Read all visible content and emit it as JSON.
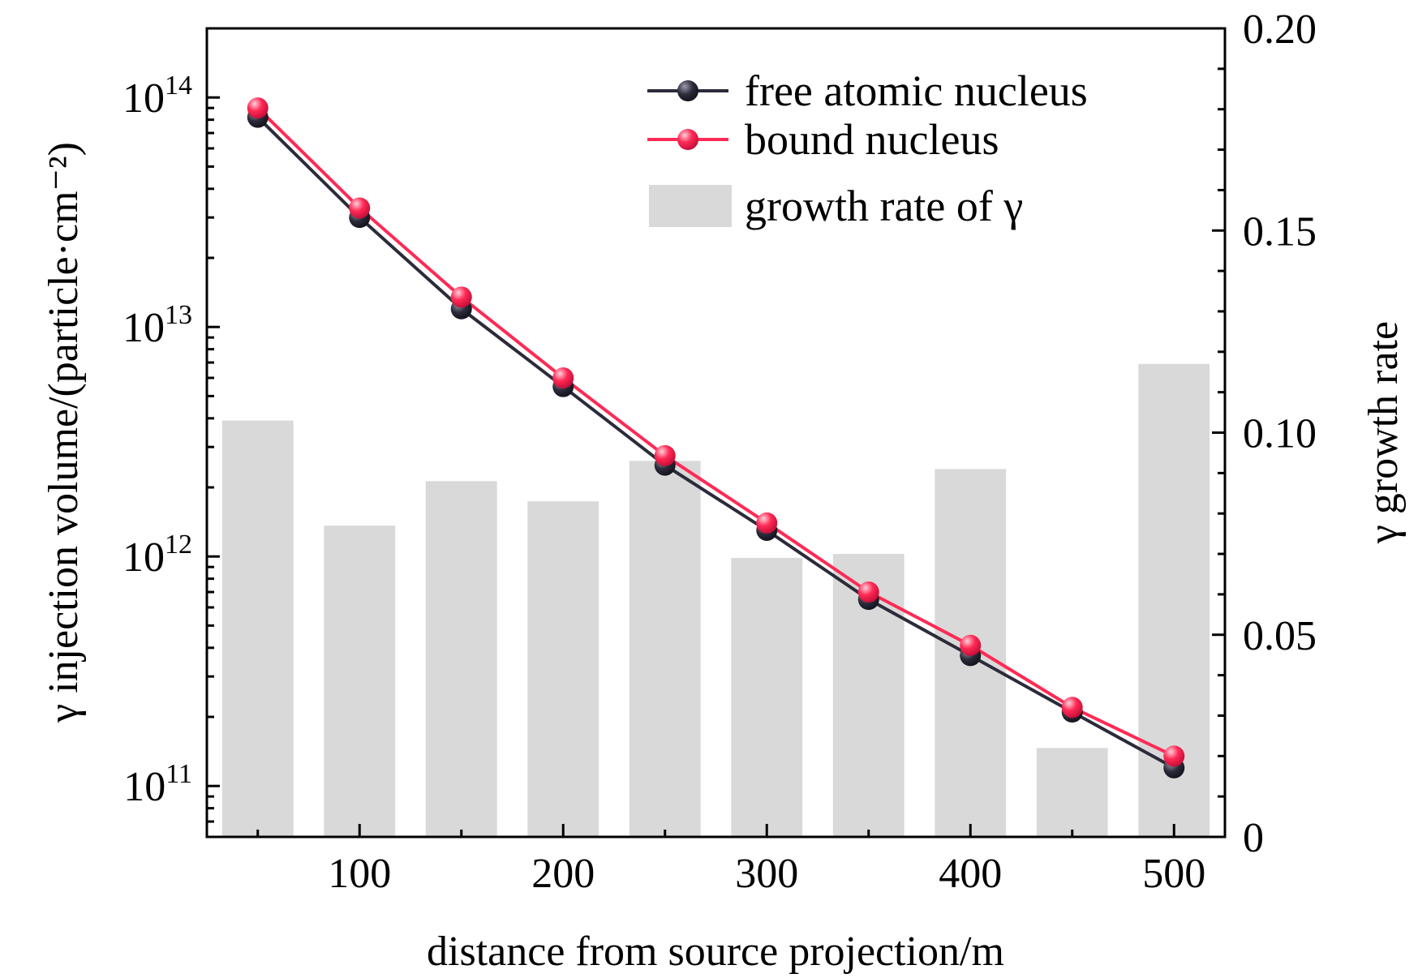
{
  "chart_data": {
    "type": "bar+line",
    "xlabel": "distance from source projection/m",
    "ylabel_left": "γ injection volume/(particle·cm⁻²)",
    "ylabel_right": "γ growth rate",
    "xlim": [
      25,
      525
    ],
    "ylim_left": [
      60000000000,
      200000000000000
    ],
    "yscale_left": "log",
    "ylim_right": [
      0,
      0.2
    ],
    "x_ticks": [
      "100",
      "200",
      "300",
      "400",
      "500"
    ],
    "x_tick_values": [
      100,
      200,
      300,
      400,
      500
    ],
    "left_ticks": [
      {
        "value": 100000000000,
        "base": "10",
        "exp": "11"
      },
      {
        "value": 1000000000000,
        "base": "10",
        "exp": "12"
      },
      {
        "value": 10000000000000,
        "base": "10",
        "exp": "13"
      },
      {
        "value": 100000000000000,
        "base": "10",
        "exp": "14"
      }
    ],
    "right_ticks": [
      {
        "value": 0,
        "label": "0"
      },
      {
        "value": 0.05,
        "label": "0.05"
      },
      {
        "value": 0.1,
        "label": "0.10"
      },
      {
        "value": 0.15,
        "label": "0.15"
      },
      {
        "value": 0.2,
        "label": "0.20"
      }
    ],
    "x": [
      50,
      100,
      150,
      200,
      250,
      300,
      350,
      400,
      450,
      500
    ],
    "bar_width": 35,
    "series": [
      {
        "name": "free atomic nucleus",
        "kind": "line",
        "axis": "left",
        "color": "#2b2b3a",
        "values": [
          82000000000000,
          30000000000000,
          12000000000000,
          5500000000000,
          2500000000000,
          1300000000000,
          650000000000,
          370000000000,
          210000000000,
          120000000000
        ]
      },
      {
        "name": "bound nucleus",
        "kind": "line",
        "axis": "left",
        "color": "#ff2a55",
        "values": [
          90000000000000,
          33000000000000,
          13500000000000,
          6000000000000,
          2750000000000,
          1400000000000,
          700000000000,
          410000000000,
          220000000000,
          135000000000
        ]
      },
      {
        "name": "growth rate of γ",
        "kind": "bar",
        "axis": "right",
        "color": "#d9d9d9",
        "values": [
          0.103,
          0.077,
          0.088,
          0.083,
          0.093,
          0.069,
          0.07,
          0.091,
          0.022,
          0.117
        ]
      }
    ],
    "legend": {
      "placement": "top-right",
      "entries": [
        "free atomic nucleus",
        "bound nucleus",
        "growth rate of γ"
      ]
    },
    "grid": false
  }
}
